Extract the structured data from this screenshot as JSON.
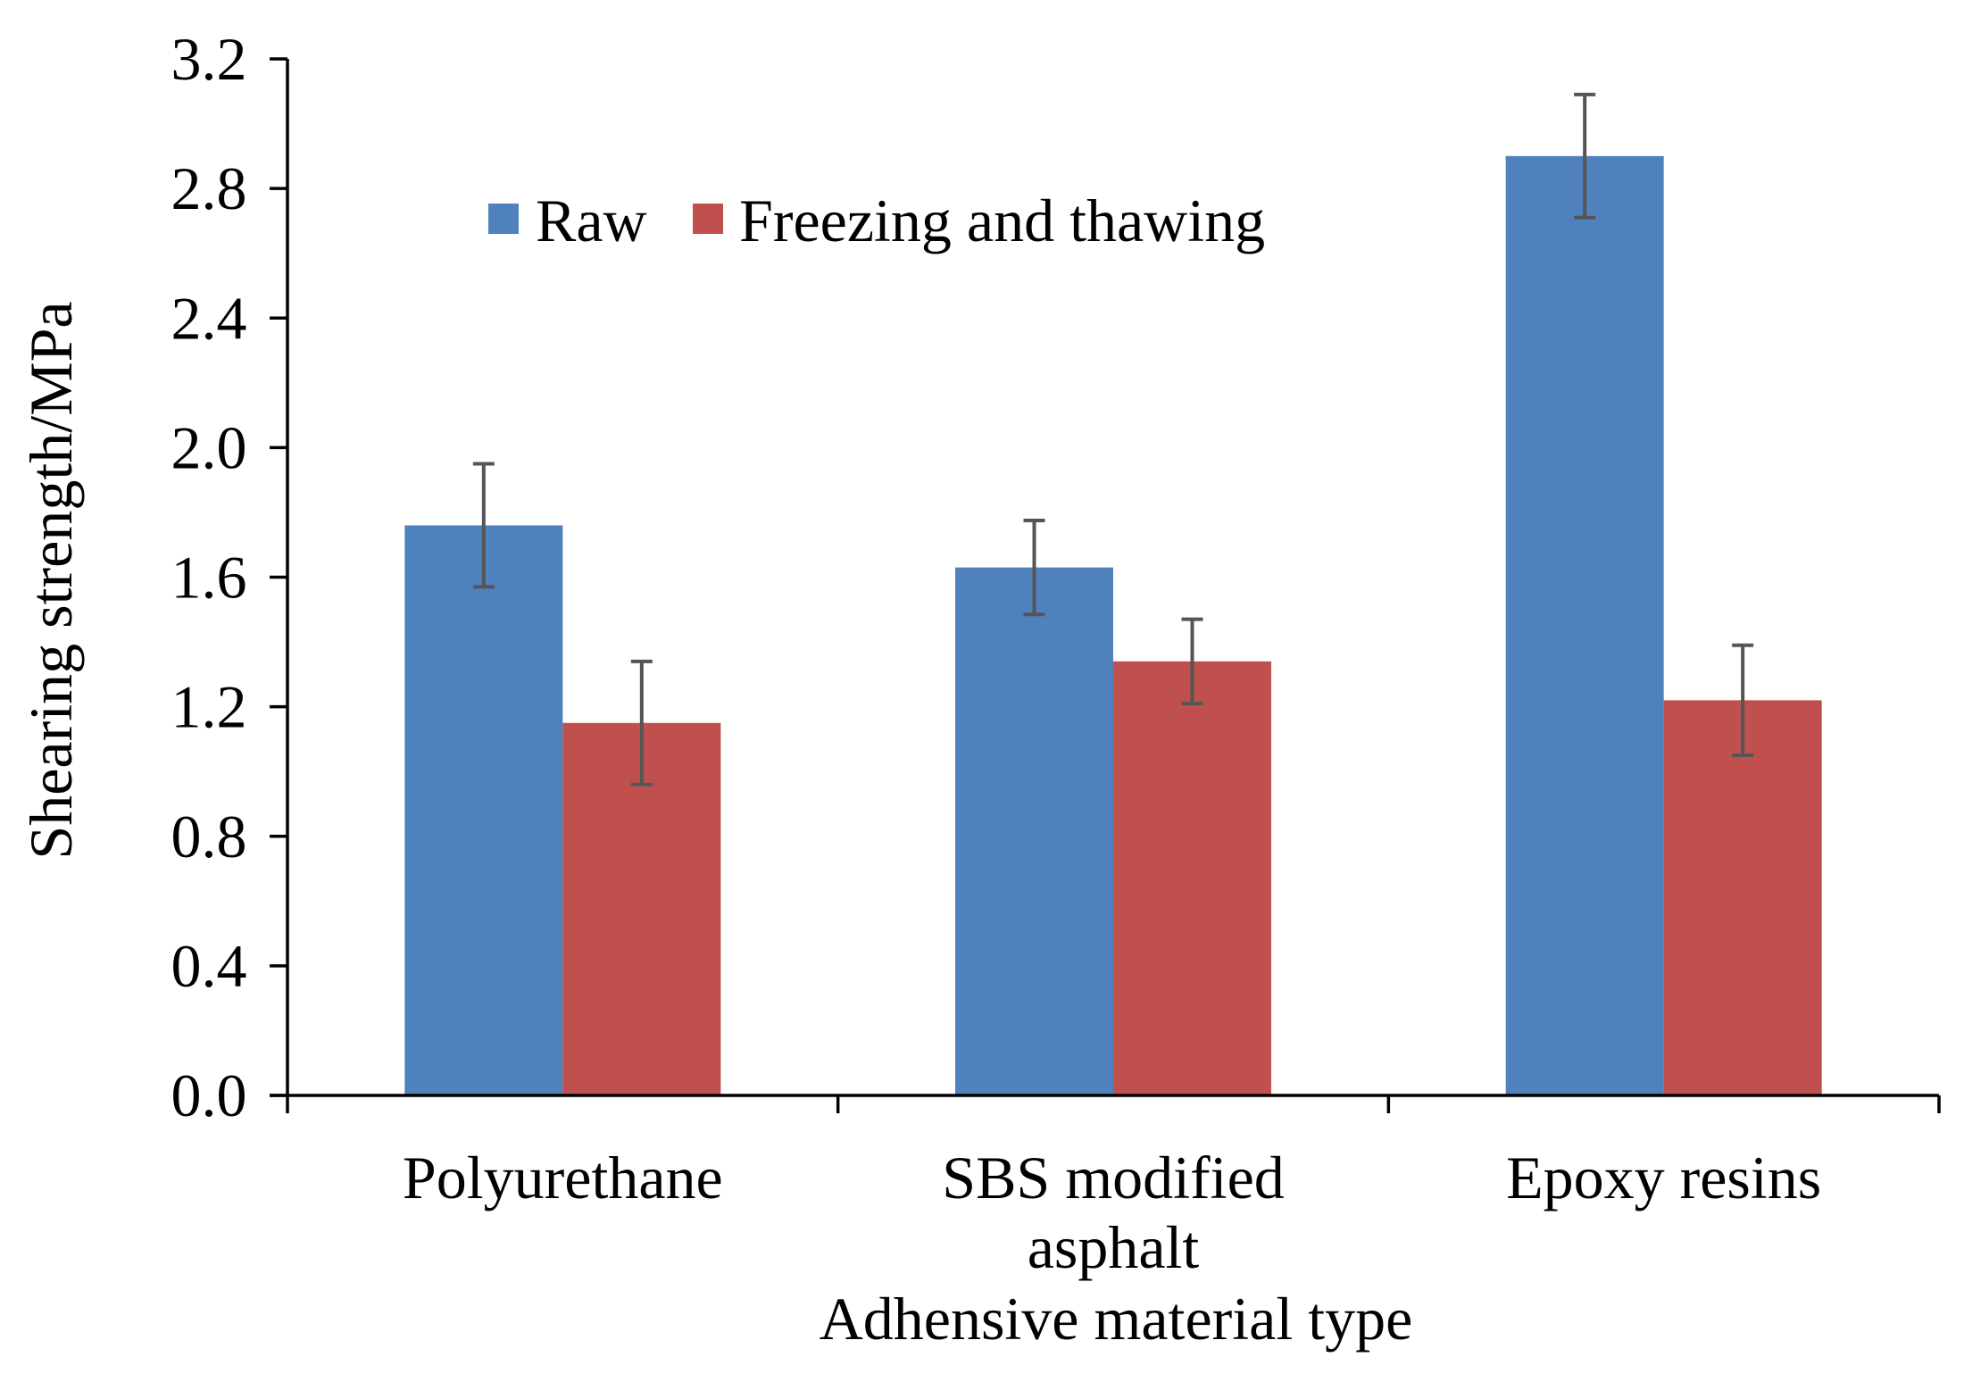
{
  "chart_data": {
    "type": "bar",
    "title": "",
    "xlabel": "Adhensive material type",
    "ylabel": "Shearing strength/MPa",
    "ylim": [
      0,
      3.2
    ],
    "yticks": [
      "0.0",
      "0.4",
      "0.8",
      "1.2",
      "1.6",
      "2.0",
      "2.4",
      "2.8",
      "3.2"
    ],
    "grid": false,
    "legend_position": "top-center",
    "categories": [
      {
        "line1": "Polyurethane",
        "line2": ""
      },
      {
        "line1": "SBS modified",
        "line2": "asphalt"
      },
      {
        "line1": "Epoxy resins",
        "line2": ""
      }
    ],
    "series": [
      {
        "name": "Raw",
        "color": "#4f81bd",
        "values": [
          1.76,
          1.63,
          2.9
        ],
        "errors": [
          0.19,
          0.145,
          0.19
        ]
      },
      {
        "name": "Freezing and thawing",
        "color": "#c0504d",
        "values": [
          1.15,
          1.34,
          1.22
        ],
        "errors": [
          0.19,
          0.13,
          0.17
        ]
      }
    ]
  }
}
